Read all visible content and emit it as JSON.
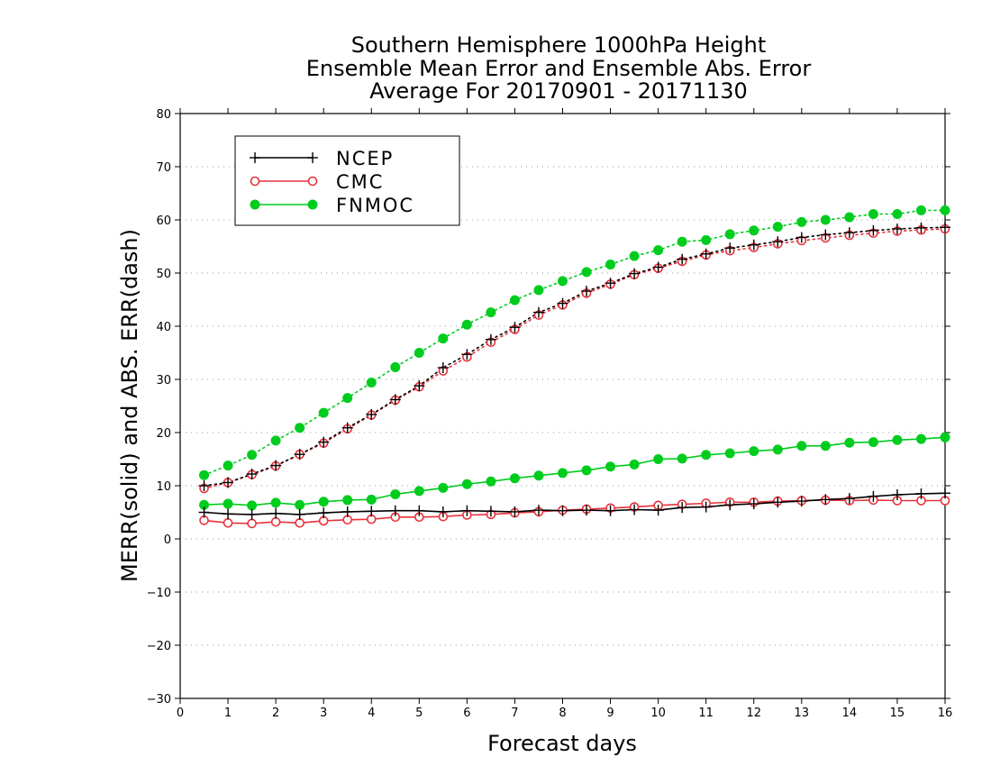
{
  "chart_data": {
    "type": "line",
    "title": [
      "Southern Hemisphere 1000hPa Height",
      "Ensemble Mean Error and Ensemble Abs. Error",
      "Average For 20170901 - 20171130"
    ],
    "xlabel": "Forecast days",
    "ylabel": "MERR(solid) and ABS. ERR(dash)",
    "xlim": [
      0,
      16
    ],
    "ylim": [
      -30,
      80
    ],
    "xticks": [
      "0",
      "1",
      "2",
      "3",
      "4",
      "5",
      "6",
      "7",
      "8",
      "9",
      "10",
      "11",
      "12",
      "13",
      "14",
      "15",
      "16"
    ],
    "yticks": [
      "80",
      "70",
      "60",
      "50",
      "40",
      "30",
      "20",
      "10",
      "0",
      "−10",
      "−20",
      "−30"
    ],
    "grid": "horizontal dotted",
    "legend_position": "top-left",
    "x": [
      0.5,
      1,
      1.5,
      2,
      2.5,
      3,
      3.5,
      4,
      4.5,
      5,
      5.5,
      6,
      6.5,
      7,
      7.5,
      8,
      8.5,
      9,
      9.5,
      10,
      10.5,
      11,
      11.5,
      12,
      12.5,
      13,
      13.5,
      14,
      14.5,
      15,
      15.5,
      16
    ],
    "series": [
      {
        "name": "NCEP",
        "color": "#000000",
        "marker": "plus",
        "merr": [
          5.0,
          4.7,
          4.6,
          4.8,
          4.6,
          4.9,
          5.1,
          5.2,
          5.3,
          5.3,
          5.1,
          5.3,
          5.2,
          5.1,
          5.4,
          5.3,
          5.4,
          5.3,
          5.5,
          5.4,
          5.9,
          6.0,
          6.4,
          6.6,
          6.9,
          7.1,
          7.4,
          7.6,
          8.0,
          8.3,
          8.5,
          8.6
        ],
        "abs_err": [
          10.0,
          10.6,
          12.2,
          13.8,
          15.9,
          18.2,
          20.9,
          23.4,
          26.2,
          28.8,
          32.2,
          34.7,
          37.5,
          39.8,
          42.6,
          44.3,
          46.6,
          48.1,
          49.9,
          51.1,
          52.6,
          53.6,
          54.7,
          55.3,
          55.9,
          56.7,
          57.2,
          57.6,
          58.0,
          58.3,
          58.5,
          58.6
        ]
      },
      {
        "name": "CMC",
        "color": "#e8323c",
        "marker": "open-circle",
        "merr": [
          3.5,
          3.0,
          2.9,
          3.2,
          3.0,
          3.4,
          3.6,
          3.7,
          4.1,
          4.1,
          4.2,
          4.5,
          4.6,
          4.9,
          5.1,
          5.4,
          5.6,
          5.8,
          6.0,
          6.3,
          6.5,
          6.7,
          6.9,
          6.9,
          7.1,
          7.2,
          7.3,
          7.2,
          7.3,
          7.2,
          7.2,
          7.2
        ],
        "abs_err": [
          9.5,
          10.6,
          12.1,
          13.7,
          15.9,
          18.0,
          20.7,
          23.3,
          26.1,
          28.6,
          31.6,
          34.2,
          37.0,
          39.4,
          42.1,
          44.0,
          46.2,
          47.9,
          49.7,
          50.9,
          52.2,
          53.4,
          54.2,
          54.8,
          55.5,
          56.1,
          56.6,
          57.1,
          57.5,
          57.9,
          58.1,
          58.3
        ]
      },
      {
        "name": "FNMOC",
        "color": "#00cc1e",
        "marker": "filled-circle",
        "merr": [
          6.4,
          6.6,
          6.3,
          6.8,
          6.4,
          7.0,
          7.3,
          7.4,
          8.4,
          9.0,
          9.6,
          10.3,
          10.8,
          11.4,
          11.9,
          12.4,
          12.9,
          13.6,
          14.0,
          15.0,
          15.1,
          15.8,
          16.1,
          16.5,
          16.8,
          17.5,
          17.5,
          18.1,
          18.2,
          18.6,
          18.8,
          19.1
        ],
        "abs_err": [
          12.0,
          13.8,
          15.8,
          18.5,
          20.9,
          23.7,
          26.5,
          29.4,
          32.3,
          35.0,
          37.7,
          40.3,
          42.6,
          44.9,
          46.8,
          48.5,
          50.2,
          51.6,
          53.2,
          54.3,
          55.9,
          56.2,
          57.3,
          58.0,
          58.7,
          59.6,
          60.0,
          60.5,
          61.1,
          61.1,
          61.8,
          61.8
        ]
      }
    ]
  }
}
